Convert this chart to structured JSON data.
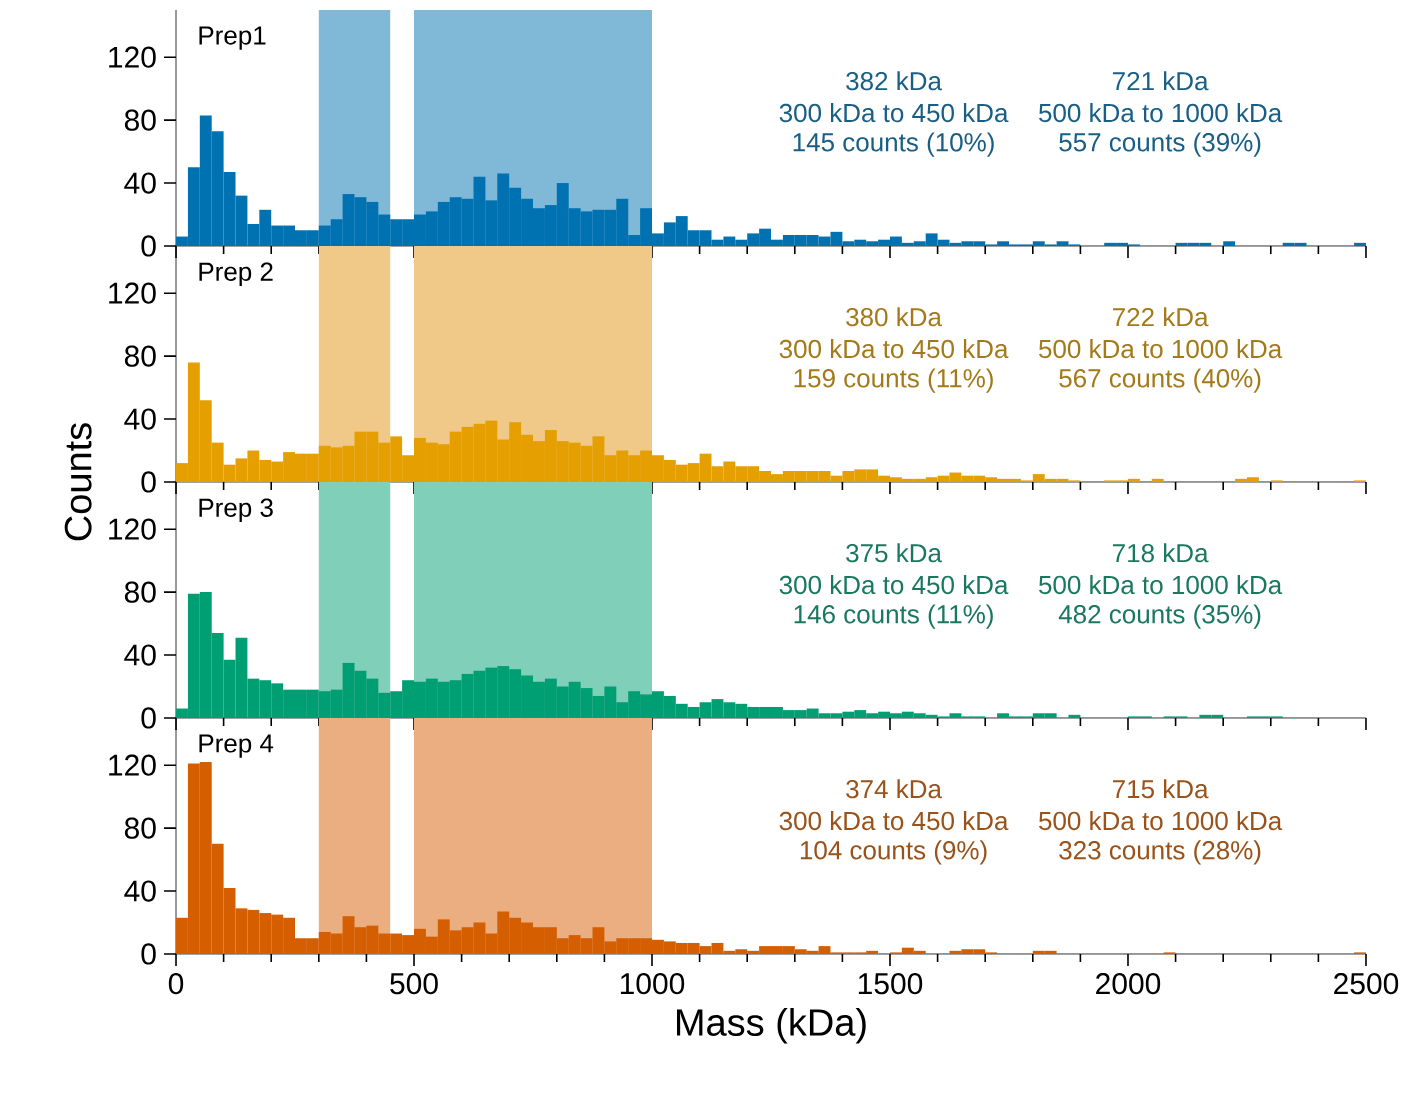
{
  "chart_data": [
    {
      "type": "histogram",
      "title": "Prep1",
      "color": "#0072b2",
      "bins": [
        0,
        25,
        50,
        75,
        100,
        125,
        150,
        175,
        200,
        225,
        250,
        275,
        300,
        325,
        350,
        375,
        400,
        425,
        450,
        475,
        500,
        525,
        550,
        575,
        600,
        625,
        650,
        675,
        700,
        725,
        750,
        775,
        800,
        825,
        850,
        875,
        900,
        925,
        950,
        975,
        1000,
        1025,
        1050,
        1075,
        1100,
        1125,
        1150,
        1175,
        1200,
        1225,
        1250,
        1275,
        1300,
        1325,
        1350,
        1375,
        1400,
        1425,
        1450,
        1475,
        1500,
        1525,
        1550,
        1575,
        1600,
        1625,
        1650,
        1675,
        1700,
        1725,
        1750,
        1775,
        1800,
        1825,
        1850,
        1875,
        1900,
        1925,
        1950,
        1975,
        2000,
        2025,
        2050,
        2075,
        2100,
        2125,
        2150,
        2175,
        2200,
        2225,
        2250,
        2275,
        2300,
        2325,
        2350,
        2375,
        2400,
        2425,
        2450,
        2475,
        2500
      ],
      "values": [
        6,
        50,
        83,
        73,
        47,
        32,
        14,
        23,
        13,
        13,
        10,
        10,
        13,
        17,
        33,
        31,
        28,
        20,
        17,
        17,
        20,
        22,
        28,
        31,
        30,
        44,
        29,
        46,
        37,
        30,
        24,
        26,
        40,
        24,
        22,
        23,
        23,
        30,
        7,
        24,
        8,
        15,
        19,
        10,
        10,
        4,
        6,
        4,
        8,
        11,
        4,
        7,
        7,
        7,
        6,
        9,
        3,
        4,
        3,
        4,
        6,
        2,
        3,
        8,
        4,
        2,
        3,
        3,
        1,
        3,
        1,
        1,
        3,
        1,
        3,
        1,
        0,
        0,
        2,
        2,
        1,
        0,
        0,
        0,
        2,
        2,
        2,
        0,
        3,
        0,
        0,
        0,
        0,
        2,
        2,
        0,
        0,
        0,
        0,
        2
      ],
      "xlim": [
        0,
        2500
      ],
      "xticks": [
        0,
        500,
        1000,
        1500,
        2000,
        2500
      ],
      "ylim": [
        0,
        150
      ],
      "yticks": [
        0,
        40,
        80,
        120
      ],
      "tick_labels": "y",
      "bands": [
        {
          "axis": "x",
          "from": 300,
          "to": 450,
          "color": "#80b8d8"
        },
        {
          "axis": "x",
          "from": 500,
          "to": 1000,
          "color": "#80b8d8"
        }
      ],
      "annotations": [
        "382 kDa",
        "300 kDa to 450 kDa",
        "145 counts (10%)",
        "721 kDa",
        "500 kDa to 1000 kDa",
        "557 counts (39%)"
      ]
    },
    {
      "type": "histogram",
      "title": "Prep 2",
      "color": "#e69f00",
      "ylabel": "Counts",
      "bins": [
        0,
        25,
        50,
        75,
        100,
        125,
        150,
        175,
        200,
        225,
        250,
        275,
        300,
        325,
        350,
        375,
        400,
        425,
        450,
        475,
        500,
        525,
        550,
        575,
        600,
        625,
        650,
        675,
        700,
        725,
        750,
        775,
        800,
        825,
        850,
        875,
        900,
        925,
        950,
        975,
        1000,
        1025,
        1050,
        1075,
        1100,
        1125,
        1150,
        1175,
        1200,
        1225,
        1250,
        1275,
        1300,
        1325,
        1350,
        1375,
        1400,
        1425,
        1450,
        1475,
        1500,
        1525,
        1550,
        1575,
        1600,
        1625,
        1650,
        1675,
        1700,
        1725,
        1750,
        1775,
        1800,
        1825,
        1850,
        1875,
        1900,
        1925,
        1950,
        1975,
        2000,
        2025,
        2050,
        2075,
        2100,
        2125,
        2150,
        2175,
        2200,
        2225,
        2250,
        2275,
        2300,
        2325,
        2350,
        2375,
        2400,
        2425,
        2450,
        2475,
        2500
      ],
      "values": [
        12,
        76,
        52,
        25,
        11,
        15,
        20,
        14,
        13,
        19,
        18,
        18,
        23,
        22,
        23,
        32,
        32,
        25,
        29,
        17,
        28,
        25,
        24,
        32,
        35,
        37,
        39,
        27,
        38,
        30,
        26,
        33,
        26,
        25,
        23,
        29,
        17,
        20,
        17,
        20,
        17,
        14,
        11,
        12,
        18,
        10,
        13,
        10,
        10,
        7,
        5,
        7,
        7,
        7,
        7,
        4,
        7,
        8,
        8,
        4,
        3,
        2,
        2,
        3,
        4,
        6,
        4,
        4,
        3,
        2,
        2,
        1,
        5,
        2,
        2,
        1,
        0,
        0,
        1,
        1,
        2,
        0,
        2,
        0,
        0,
        0,
        0,
        0,
        0,
        2,
        3,
        0,
        1,
        0,
        0,
        0,
        0,
        0,
        0,
        1
      ],
      "xlim": [
        0,
        2500
      ],
      "xticks": [
        0,
        500,
        1000,
        1500,
        2000,
        2500
      ],
      "ylim": [
        0,
        150
      ],
      "yticks": [
        0,
        40,
        80,
        120
      ],
      "tick_labels": "y",
      "bands": [
        {
          "axis": "x",
          "from": 300,
          "to": 450,
          "color": "#f0c988"
        },
        {
          "axis": "x",
          "from": 500,
          "to": 1000,
          "color": "#f0c988"
        }
      ],
      "annotations": [
        "380 kDa",
        "300 kDa to 450 kDa",
        "159 counts (11%)",
        "722 kDa",
        "500 kDa to 1000 kDa",
        "567 counts (40%)"
      ]
    },
    {
      "type": "histogram",
      "title": "Prep 3",
      "color": "#009e73",
      "bins": [
        0,
        25,
        50,
        75,
        100,
        125,
        150,
        175,
        200,
        225,
        250,
        275,
        300,
        325,
        350,
        375,
        400,
        425,
        450,
        475,
        500,
        525,
        550,
        575,
        600,
        625,
        650,
        675,
        700,
        725,
        750,
        775,
        800,
        825,
        850,
        875,
        900,
        925,
        950,
        975,
        1000,
        1025,
        1050,
        1075,
        1100,
        1125,
        1150,
        1175,
        1200,
        1225,
        1250,
        1275,
        1300,
        1325,
        1350,
        1375,
        1400,
        1425,
        1450,
        1475,
        1500,
        1525,
        1550,
        1575,
        1600,
        1625,
        1650,
        1675,
        1700,
        1725,
        1750,
        1775,
        1800,
        1825,
        1850,
        1875,
        1900,
        1925,
        1950,
        1975,
        2000,
        2025,
        2050,
        2075,
        2100,
        2125,
        2150,
        2175,
        2200,
        2225,
        2250,
        2275,
        2300,
        2325,
        2350,
        2375,
        2400,
        2425,
        2450,
        2475,
        2500
      ],
      "values": [
        6,
        79,
        80,
        54,
        37,
        51,
        25,
        24,
        22,
        18,
        18,
        18,
        17,
        18,
        35,
        30,
        25,
        16,
        17,
        24,
        23,
        25,
        23,
        24,
        28,
        30,
        32,
        33,
        31,
        27,
        23,
        25,
        20,
        23,
        19,
        14,
        20,
        10,
        17,
        15,
        17,
        14,
        9,
        7,
        10,
        12,
        10,
        9,
        7,
        7,
        7,
        5,
        5,
        6,
        3,
        3,
        4,
        5,
        3,
        4,
        3,
        4,
        3,
        2,
        1,
        3,
        1,
        1,
        0,
        3,
        1,
        1,
        3,
        3,
        0,
        2,
        0,
        0,
        0,
        0,
        1,
        1,
        0,
        1,
        1,
        0,
        2,
        2,
        0,
        0,
        1,
        1,
        1,
        0,
        0,
        0,
        0,
        0,
        0,
        0
      ],
      "xlim": [
        0,
        2500
      ],
      "xticks": [
        0,
        500,
        1000,
        1500,
        2000,
        2500
      ],
      "ylim": [
        0,
        150
      ],
      "yticks": [
        0,
        40,
        80,
        120
      ],
      "tick_labels": "y",
      "bands": [
        {
          "axis": "x",
          "from": 300,
          "to": 450,
          "color": "#80cfb9"
        },
        {
          "axis": "x",
          "from": 500,
          "to": 1000,
          "color": "#80cfb9"
        }
      ],
      "annotations": [
        "375 kDa",
        "300 kDa to 450 kDa",
        "146 counts (11%)",
        "718 kDa",
        "500 kDa to 1000 kDa",
        "482 counts (35%)"
      ]
    },
    {
      "type": "histogram",
      "title": "Prep 4",
      "color": "#d55e00",
      "xlabel": "Mass (kDa)",
      "bins": [
        0,
        25,
        50,
        75,
        100,
        125,
        150,
        175,
        200,
        225,
        250,
        275,
        300,
        325,
        350,
        375,
        400,
        425,
        450,
        475,
        500,
        525,
        550,
        575,
        600,
        625,
        650,
        675,
        700,
        725,
        750,
        775,
        800,
        825,
        850,
        875,
        900,
        925,
        950,
        975,
        1000,
        1025,
        1050,
        1075,
        1100,
        1125,
        1150,
        1175,
        1200,
        1225,
        1250,
        1275,
        1300,
        1325,
        1350,
        1375,
        1400,
        1425,
        1450,
        1475,
        1500,
        1525,
        1550,
        1575,
        1600,
        1625,
        1650,
        1675,
        1700,
        1725,
        1750,
        1775,
        1800,
        1825,
        1850,
        1875,
        1900,
        1925,
        1950,
        1975,
        2000,
        2025,
        2050,
        2075,
        2100,
        2125,
        2150,
        2175,
        2200,
        2225,
        2250,
        2275,
        2300,
        2325,
        2350,
        2375,
        2400,
        2425,
        2450,
        2475,
        2500
      ],
      "values": [
        23,
        121,
        122,
        70,
        42,
        29,
        28,
        26,
        25,
        23,
        10,
        10,
        14,
        13,
        24,
        17,
        18,
        13,
        13,
        12,
        16,
        11,
        22,
        15,
        17,
        20,
        13,
        27,
        23,
        20,
        17,
        17,
        10,
        12,
        10,
        17,
        8,
        10,
        10,
        10,
        9,
        8,
        7,
        7,
        5,
        7,
        2,
        3,
        2,
        5,
        5,
        5,
        3,
        2,
        5,
        1,
        1,
        1,
        2,
        0,
        1,
        4,
        2,
        0,
        0,
        2,
        3,
        3,
        1,
        0,
        0,
        0,
        2,
        2,
        0,
        0,
        0,
        0,
        0,
        0,
        0,
        0,
        0,
        1,
        0,
        0,
        0,
        0,
        0,
        0,
        0,
        0,
        0,
        0,
        0,
        0,
        0,
        0,
        0,
        1
      ],
      "xlim": [
        0,
        2500
      ],
      "xticks": [
        0,
        500,
        1000,
        1500,
        2000,
        2500
      ],
      "ylim": [
        0,
        150
      ],
      "yticks": [
        0,
        40,
        80,
        120
      ],
      "bands": [
        {
          "axis": "x",
          "from": 300,
          "to": 450,
          "color": "#eaae80"
        },
        {
          "axis": "x",
          "from": 500,
          "to": 1000,
          "color": "#eaae80"
        }
      ],
      "annotations": [
        "374 kDa",
        "300 kDa to 450 kDa",
        "104 counts (9%)",
        "715 kDa",
        "500 kDa to 1000 kDa",
        "323 counts (28%)"
      ]
    }
  ]
}
